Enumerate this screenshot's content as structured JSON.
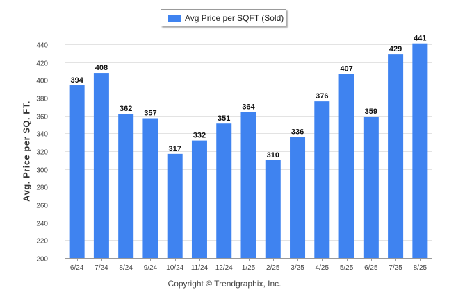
{
  "chart_data": {
    "type": "bar",
    "categories": [
      "6/24",
      "7/24",
      "8/24",
      "9/24",
      "10/24",
      "11/24",
      "12/24",
      "1/25",
      "2/25",
      "3/25",
      "4/25",
      "5/25",
      "6/25",
      "7/25",
      "8/25"
    ],
    "series": [
      {
        "name": "Avg Price per SQFT (Sold)",
        "values": [
          394,
          408,
          362,
          357,
          317,
          332,
          351,
          364,
          310,
          336,
          376,
          407,
          359,
          429,
          441
        ]
      }
    ],
    "ylabel": "Avg. Price per SQ. FT.",
    "xlabel": "",
    "ylim": [
      200,
      440
    ],
    "yticks": [
      200,
      220,
      240,
      260,
      280,
      300,
      320,
      340,
      360,
      380,
      400,
      420,
      440
    ],
    "grid": true,
    "legend": "top-center",
    "bar_color": "#3f83f0"
  },
  "footer": "Copyright © Trendgraphix, Inc."
}
